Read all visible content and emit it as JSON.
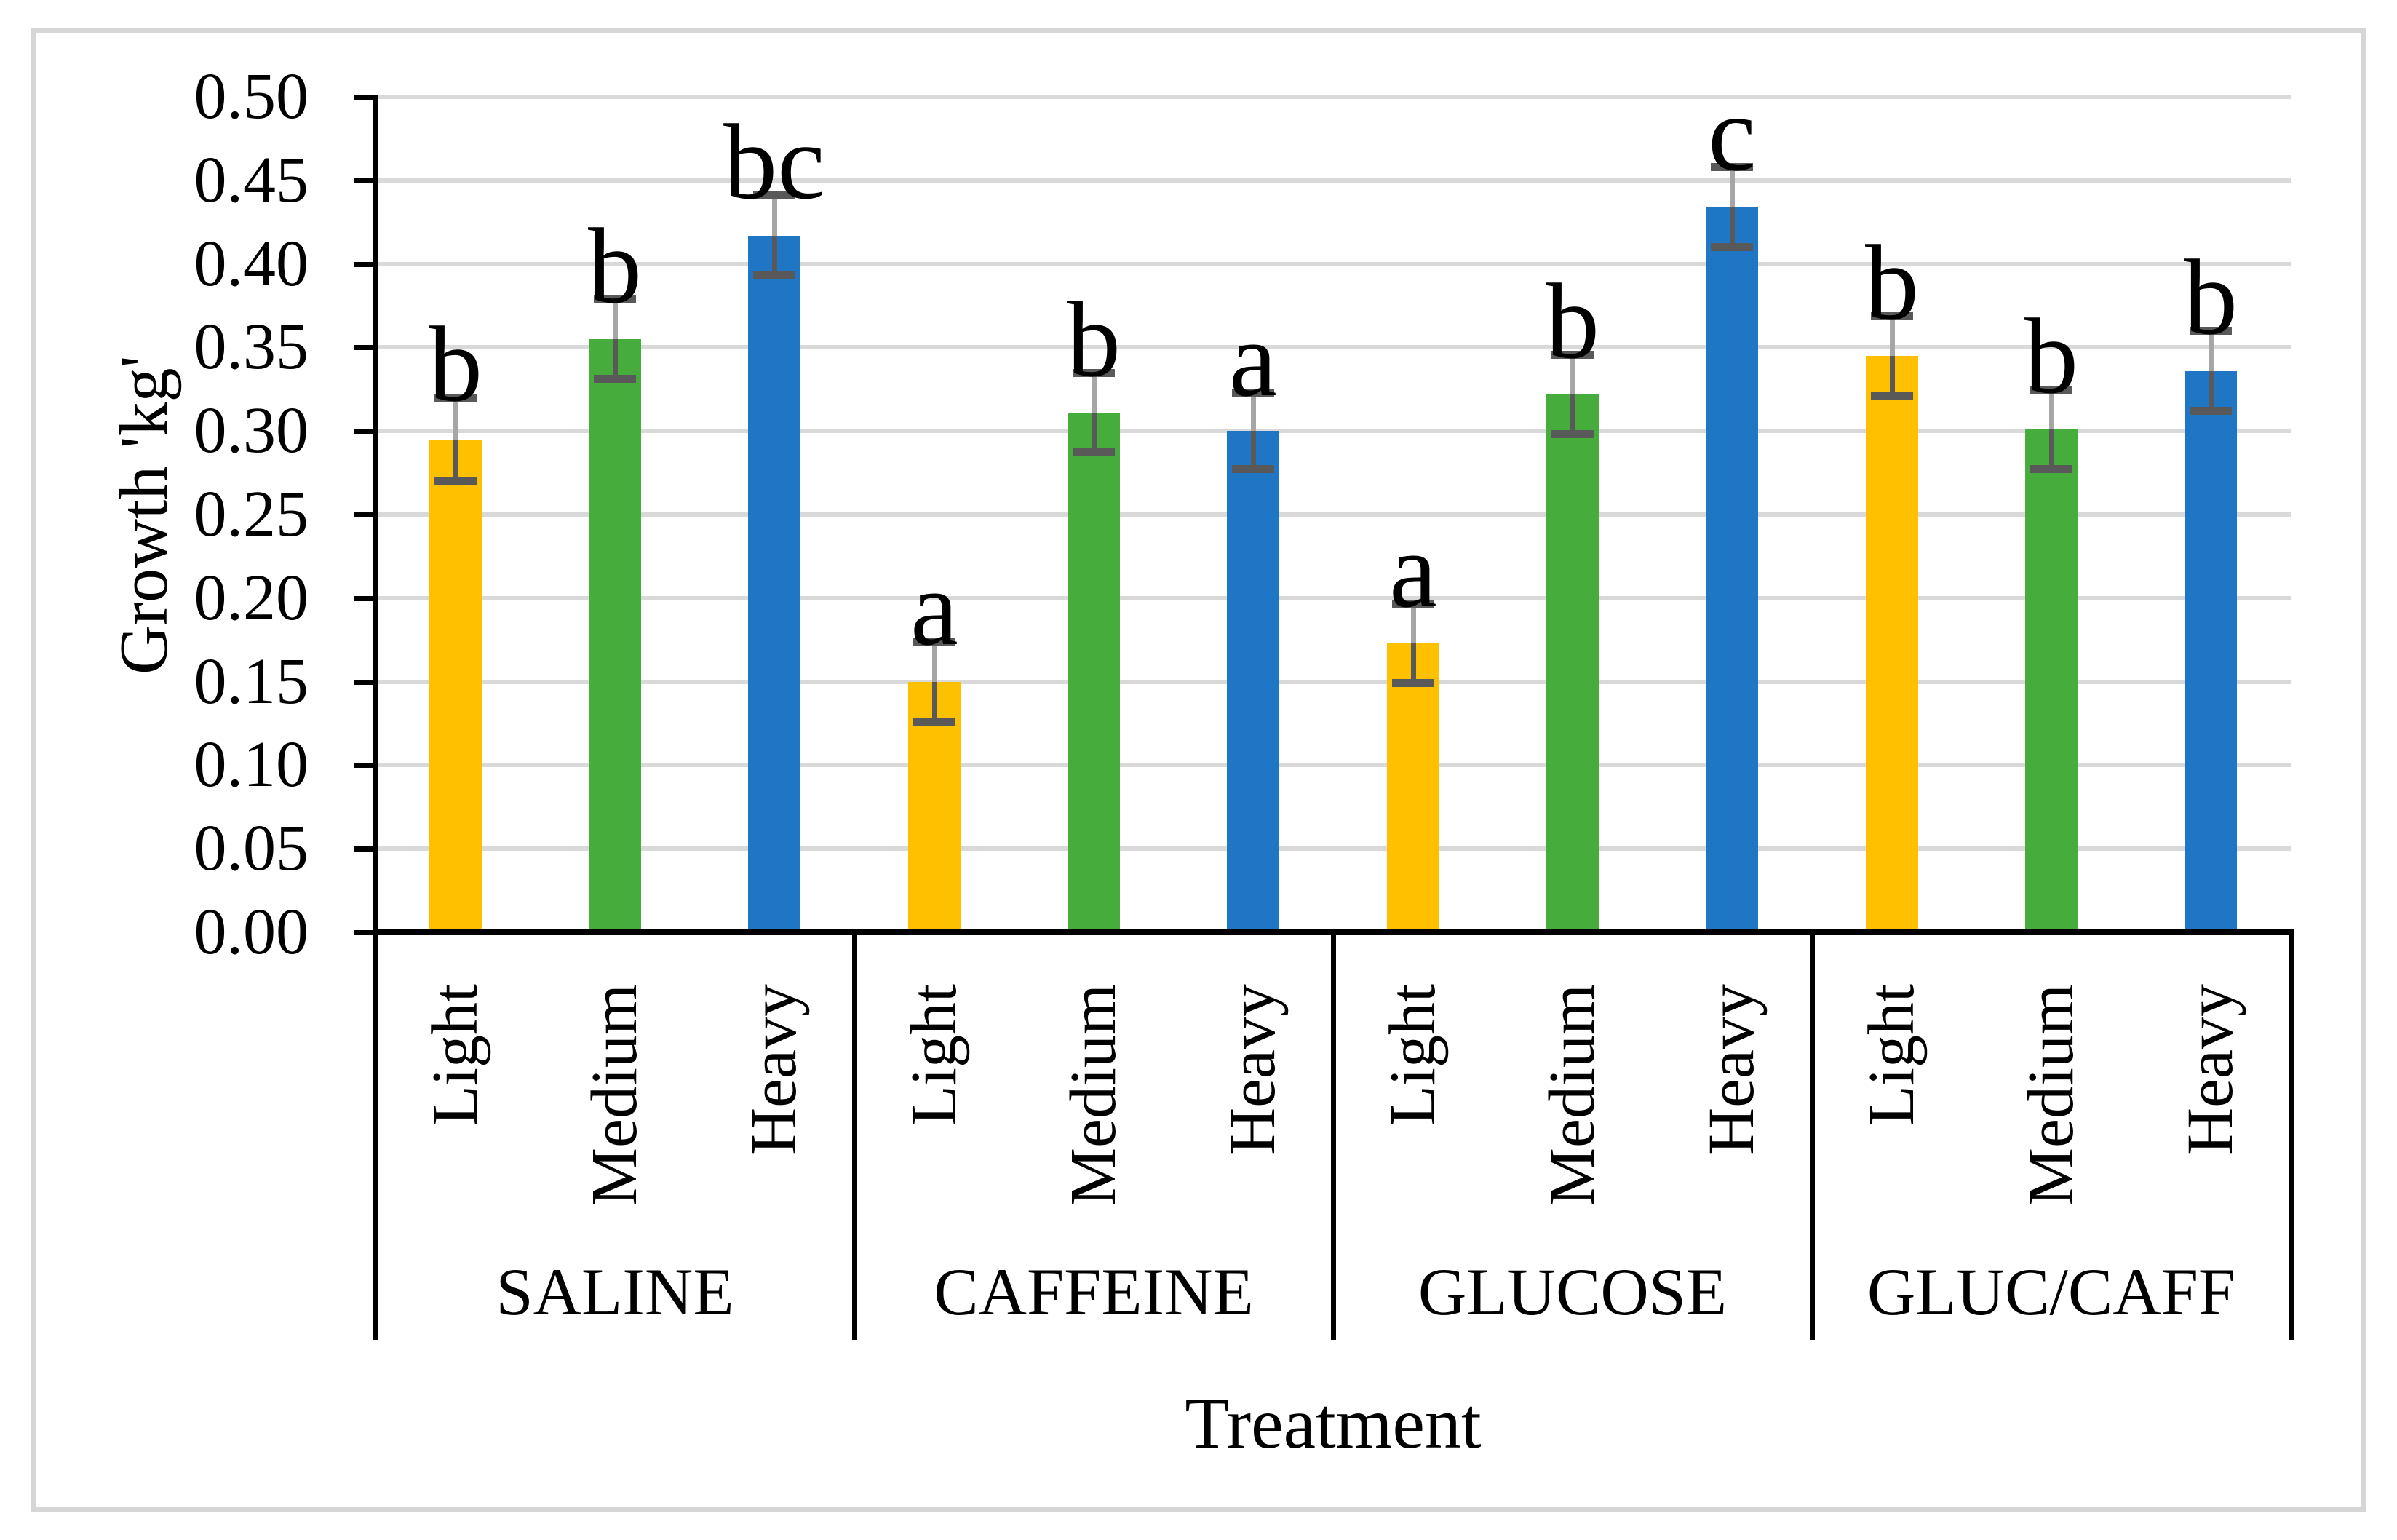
{
  "figure": {
    "background": "#FFFFFF",
    "border_color": "#D6D6D6"
  },
  "chart_data": {
    "type": "bar",
    "title": "",
    "ylabel": "Growth 'kg'",
    "xlabel": "Treatment",
    "ylim": [
      0,
      0.5
    ],
    "ytick_step": 0.05,
    "ytick_labels": [
      "0.00",
      "0.05",
      "0.10",
      "0.15",
      "0.20",
      "0.25",
      "0.30",
      "0.35",
      "0.40",
      "0.45",
      "0.50"
    ],
    "grid": true,
    "legend_position": "none",
    "gridline_color": "#D9D9D9",
    "axis_color": "#000000",
    "error_bar_upper_color": "#A6A6A6",
    "error_bar_lower_color": "#595959",
    "error_cap_color": "#595959",
    "categories": [
      "Light",
      "Medium",
      "Heavy"
    ],
    "palette": {
      "Light": "#FFC000",
      "Medium": "#46AD3C",
      "Heavy": "#1F76C4"
    },
    "groups": [
      {
        "label": "SALINE",
        "bars": [
          {
            "category": "Light",
            "value": 0.295,
            "error": 0.025,
            "sig": "b"
          },
          {
            "category": "Medium",
            "value": 0.355,
            "error": 0.024,
            "sig": "b"
          },
          {
            "category": "Heavy",
            "value": 0.417,
            "error": 0.024,
            "sig": "bc"
          }
        ]
      },
      {
        "label": "CAFFEINE",
        "bars": [
          {
            "category": "Light",
            "value": 0.15,
            "error": 0.024,
            "sig": "a"
          },
          {
            "category": "Medium",
            "value": 0.311,
            "error": 0.024,
            "sig": "b"
          },
          {
            "category": "Heavy",
            "value": 0.3,
            "error": 0.023,
            "sig": "a"
          }
        ]
      },
      {
        "label": "GLUCOSE",
        "bars": [
          {
            "category": "Light",
            "value": 0.173,
            "error": 0.024,
            "sig": "a"
          },
          {
            "category": "Medium",
            "value": 0.322,
            "error": 0.024,
            "sig": "b"
          },
          {
            "category": "Heavy",
            "value": 0.434,
            "error": 0.024,
            "sig": "c"
          }
        ]
      },
      {
        "label": "GLUC/CAFF",
        "bars": [
          {
            "category": "Light",
            "value": 0.345,
            "error": 0.024,
            "sig": "b"
          },
          {
            "category": "Medium",
            "value": 0.301,
            "error": 0.024,
            "sig": "b"
          },
          {
            "category": "Heavy",
            "value": 0.336,
            "error": 0.024,
            "sig": "b"
          }
        ]
      }
    ]
  }
}
